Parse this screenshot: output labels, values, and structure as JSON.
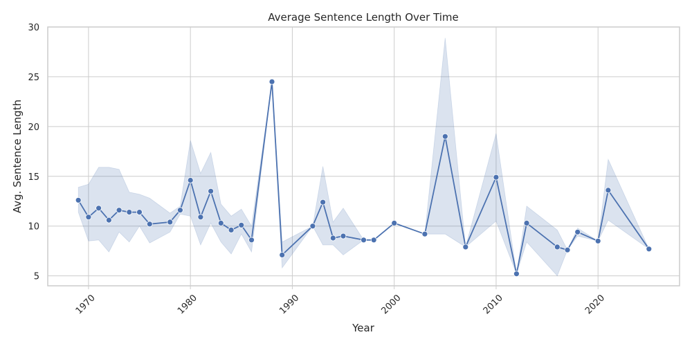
{
  "chart_data": {
    "type": "line",
    "title": "Average Sentence Length Over Time",
    "xlabel": "Year",
    "ylabel": "Avg. Sentence Length",
    "xlim": [
      1966,
      2028
    ],
    "ylim": [
      4,
      30
    ],
    "xticks": [
      "1970",
      "1980",
      "1990",
      "2000",
      "2010",
      "2020"
    ],
    "yticks": [
      "5",
      "10",
      "15",
      "20",
      "25",
      "30"
    ],
    "grid": true,
    "legend": "none",
    "colors": {
      "line": "#4c72b0",
      "band": "#4c72b0",
      "grid": "#cccccc",
      "axes": "#cccccc"
    },
    "series": [
      {
        "x": [
          1969,
          1970,
          1971,
          1972,
          1973,
          1974,
          1975,
          1976,
          1978,
          1979,
          1980,
          1981,
          1982,
          1983,
          1984,
          1985,
          1986,
          1988,
          1989,
          1992,
          1993,
          1994,
          1995,
          1997,
          1998,
          2000,
          2003,
          2005,
          2007,
          2010,
          2012,
          2013,
          2016,
          2017,
          2018,
          2020,
          2021,
          2025
        ],
        "y": [
          12.6,
          10.9,
          11.8,
          10.6,
          11.6,
          11.4,
          11.4,
          10.2,
          10.4,
          11.6,
          14.6,
          10.9,
          13.5,
          10.3,
          9.6,
          10.1,
          8.6,
          24.5,
          7.1,
          10.0,
          12.4,
          8.8,
          9.0,
          8.6,
          8.6,
          10.3,
          9.2,
          19.0,
          7.9,
          14.9,
          5.2,
          10.3,
          7.9,
          7.6,
          9.4,
          8.5,
          13.6,
          7.7
        ],
        "lower": [
          11.4,
          8.5,
          8.6,
          7.4,
          9.4,
          8.4,
          10.0,
          8.3,
          9.4,
          11.2,
          11.0,
          8.1,
          10.3,
          8.4,
          7.2,
          9.2,
          7.4,
          24.5,
          5.8,
          10.0,
          8.1,
          8.1,
          7.1,
          8.6,
          8.6,
          10.3,
          9.2,
          9.2,
          7.9,
          10.5,
          5.2,
          8.4,
          5.0,
          7.6,
          9.0,
          8.5,
          10.6,
          7.7
        ],
        "upper": [
          13.9,
          14.2,
          15.9,
          15.9,
          15.7,
          13.4,
          13.2,
          12.8,
          11.3,
          12.0,
          18.6,
          15.3,
          17.4,
          12.2,
          11.0,
          11.7,
          10.0,
          24.5,
          8.4,
          10.0,
          16.0,
          10.4,
          11.8,
          8.6,
          8.6,
          10.3,
          9.2,
          28.9,
          7.9,
          19.3,
          5.2,
          12.0,
          9.6,
          7.6,
          9.8,
          8.5,
          16.7,
          7.7
        ]
      }
    ]
  }
}
